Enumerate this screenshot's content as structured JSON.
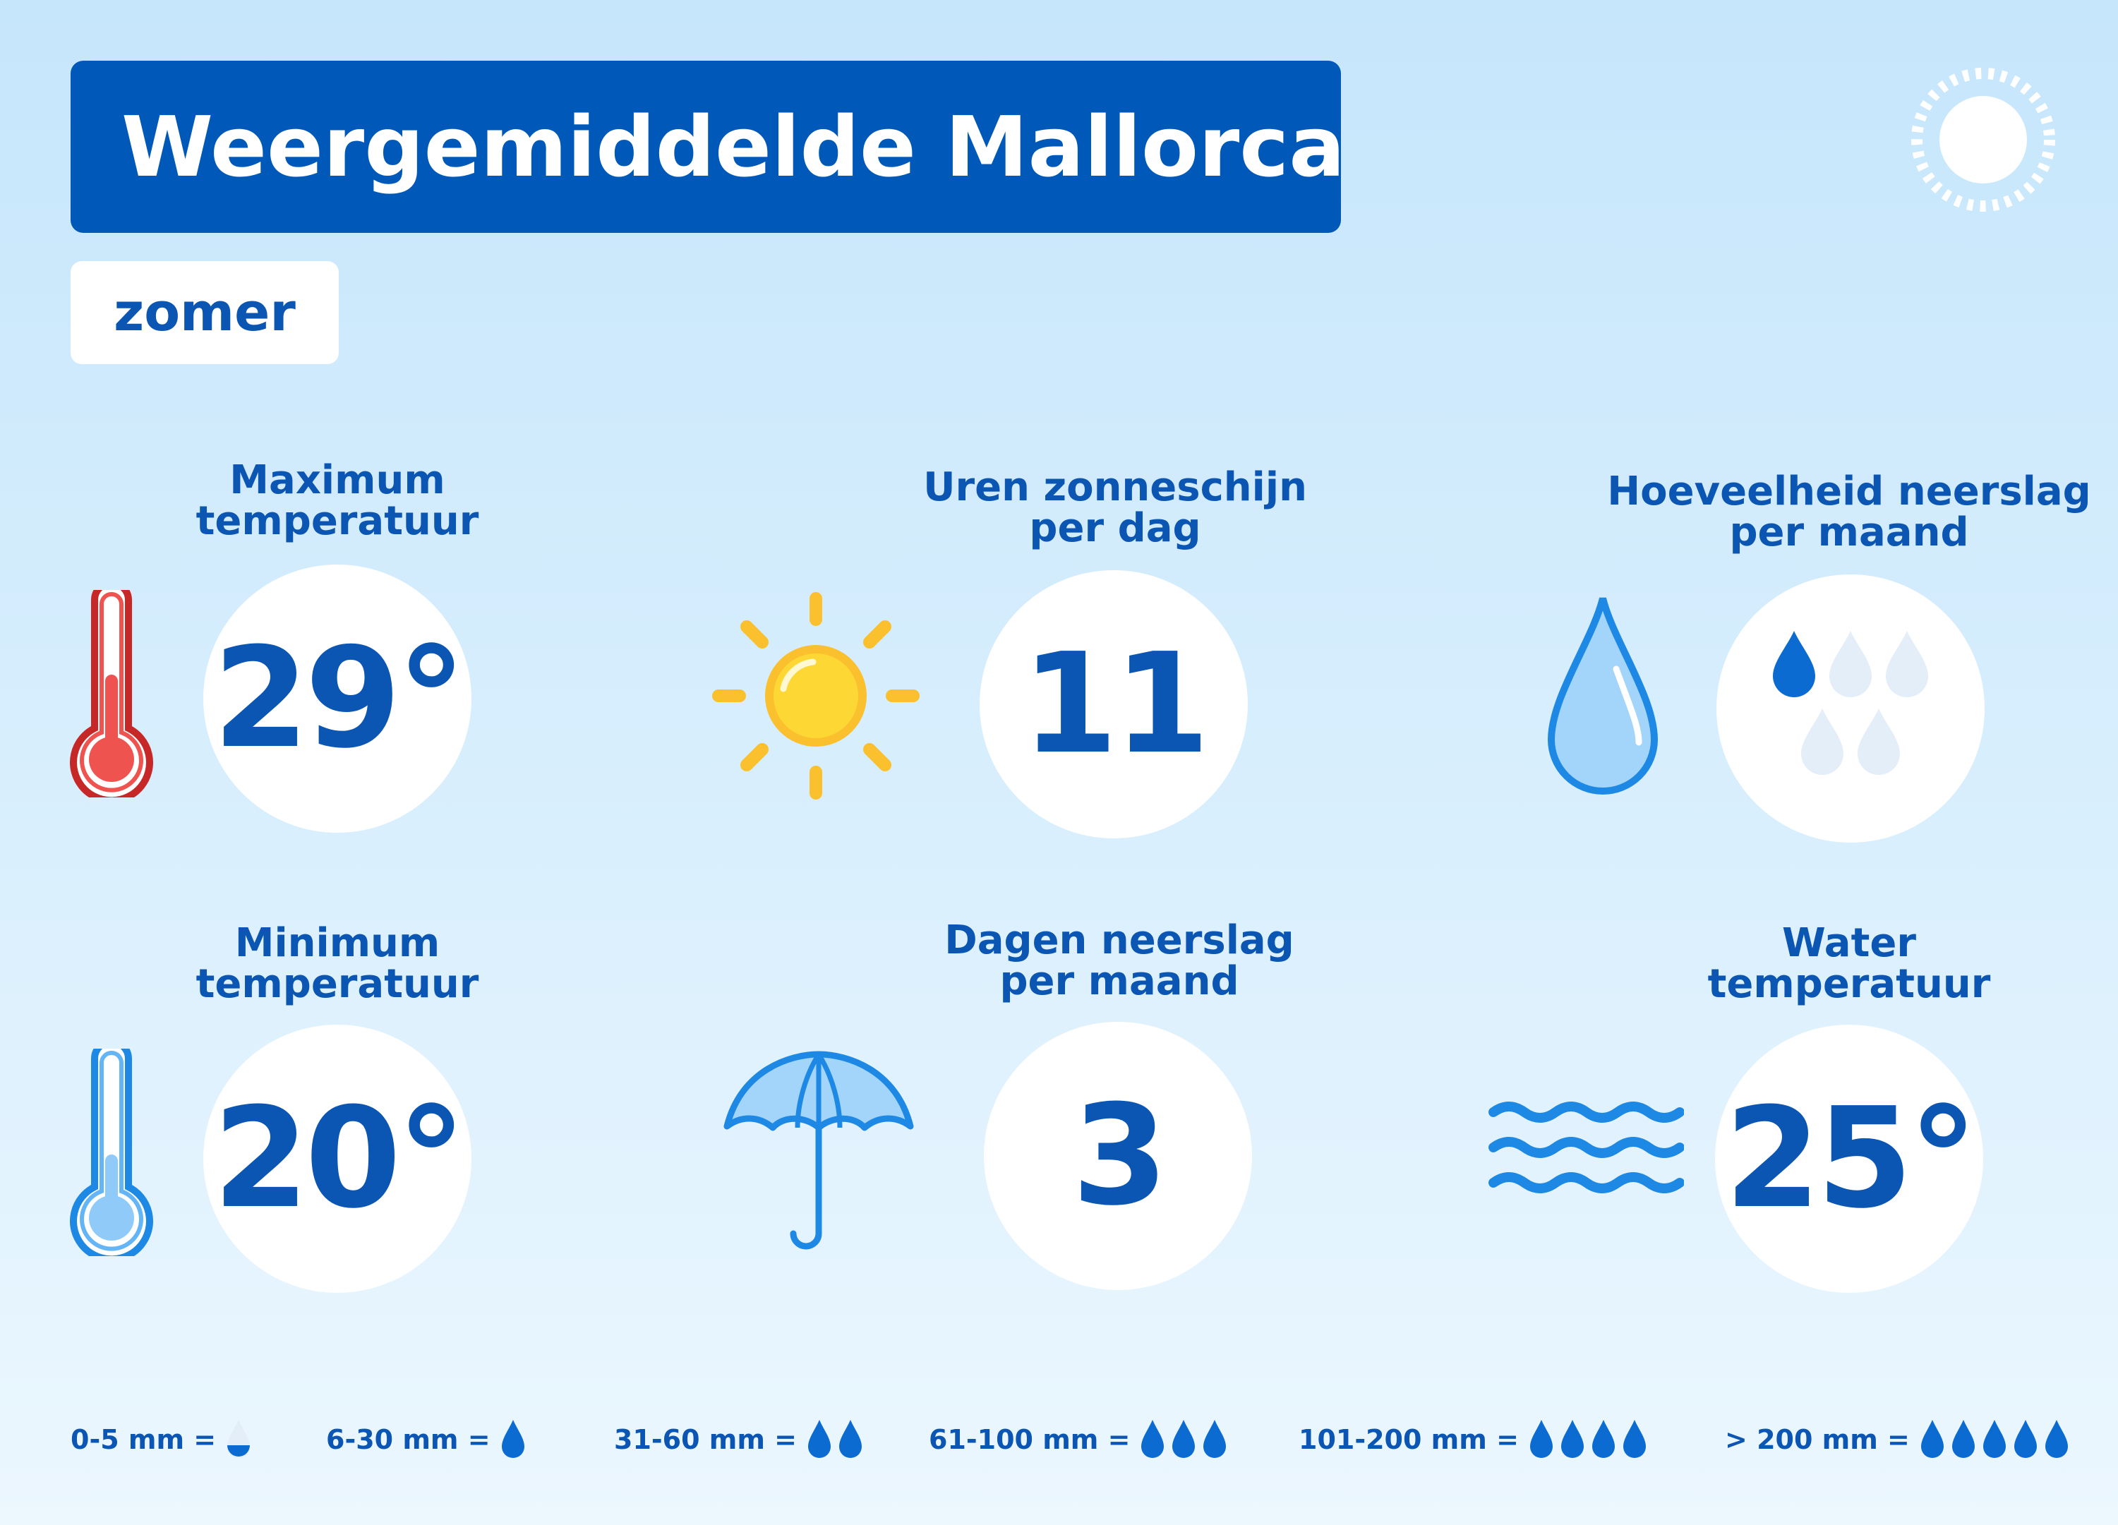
{
  "title": "Weergemiddelde Mallorca",
  "season": "zomer",
  "stats": {
    "max_temp": {
      "label_line1": "Maximum",
      "label_line2": "temperatuur",
      "value": "29°",
      "icon": "thermometer-hot-icon"
    },
    "sun_hours": {
      "label_line1": "Uren zonneschijn",
      "label_line2": "per dag",
      "value": "11",
      "icon": "sun-icon"
    },
    "precip_amount": {
      "label_line1": "Hoeveelheid neerslag",
      "label_line2": "per maand",
      "icon": "raindrop-icon",
      "drops_filled": 1,
      "drops_total": 5
    },
    "min_temp": {
      "label_line1": "Minimum",
      "label_line2": "temperatuur",
      "value": "20°",
      "icon": "thermometer-cold-icon"
    },
    "rain_days": {
      "label_line1": "Dagen neerslag",
      "label_line2": "per maand",
      "value": "3",
      "icon": "umbrella-icon"
    },
    "water_temp": {
      "label_line1": "Water",
      "label_line2": "temperatuur",
      "value": "25°",
      "icon": "waves-icon"
    }
  },
  "legend": [
    {
      "label": "0-5 mm =",
      "drops": 1,
      "half": true
    },
    {
      "label": "6-30 mm =",
      "drops": 1
    },
    {
      "label": "31-60 mm =",
      "drops": 2
    },
    {
      "label": "61-100 mm =",
      "drops": 3
    },
    {
      "label": "101-200 mm =",
      "drops": 4
    },
    {
      "label": "> 200 mm =",
      "drops": 5
    }
  ],
  "colors": {
    "title_bg": "#0059b8",
    "text": "#0b55b3",
    "thermometer_hot": "#d32f2f",
    "thermometer_cold": "#1e88e5",
    "sun": "#fbc02d",
    "drop": "#0b6bd0",
    "drop_light": "#e3eef9"
  }
}
